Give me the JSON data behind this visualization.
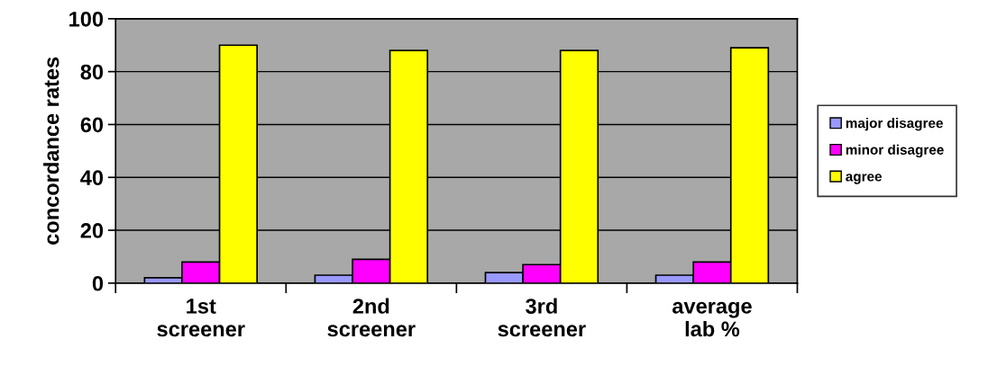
{
  "chart_data": {
    "type": "bar",
    "ylabel": "concordance rates",
    "categories": [
      "1st\nscreener",
      "2nd\nscreener",
      "3rd\nscreener",
      "average\nlab %"
    ],
    "series": [
      {
        "name": "major disagree",
        "color": "#9999ff",
        "values": [
          2,
          3,
          4,
          3
        ]
      },
      {
        "name": "minor disagree",
        "color": "#ff00ff",
        "values": [
          8,
          9,
          7,
          8
        ]
      },
      {
        "name": "agree",
        "color": "#ffff00",
        "values": [
          90,
          88,
          88,
          89
        ]
      }
    ],
    "ylim": [
      0,
      100
    ],
    "yticks": [
      0,
      20,
      40,
      60,
      80,
      100
    ],
    "grid": "y",
    "legend": "right"
  }
}
